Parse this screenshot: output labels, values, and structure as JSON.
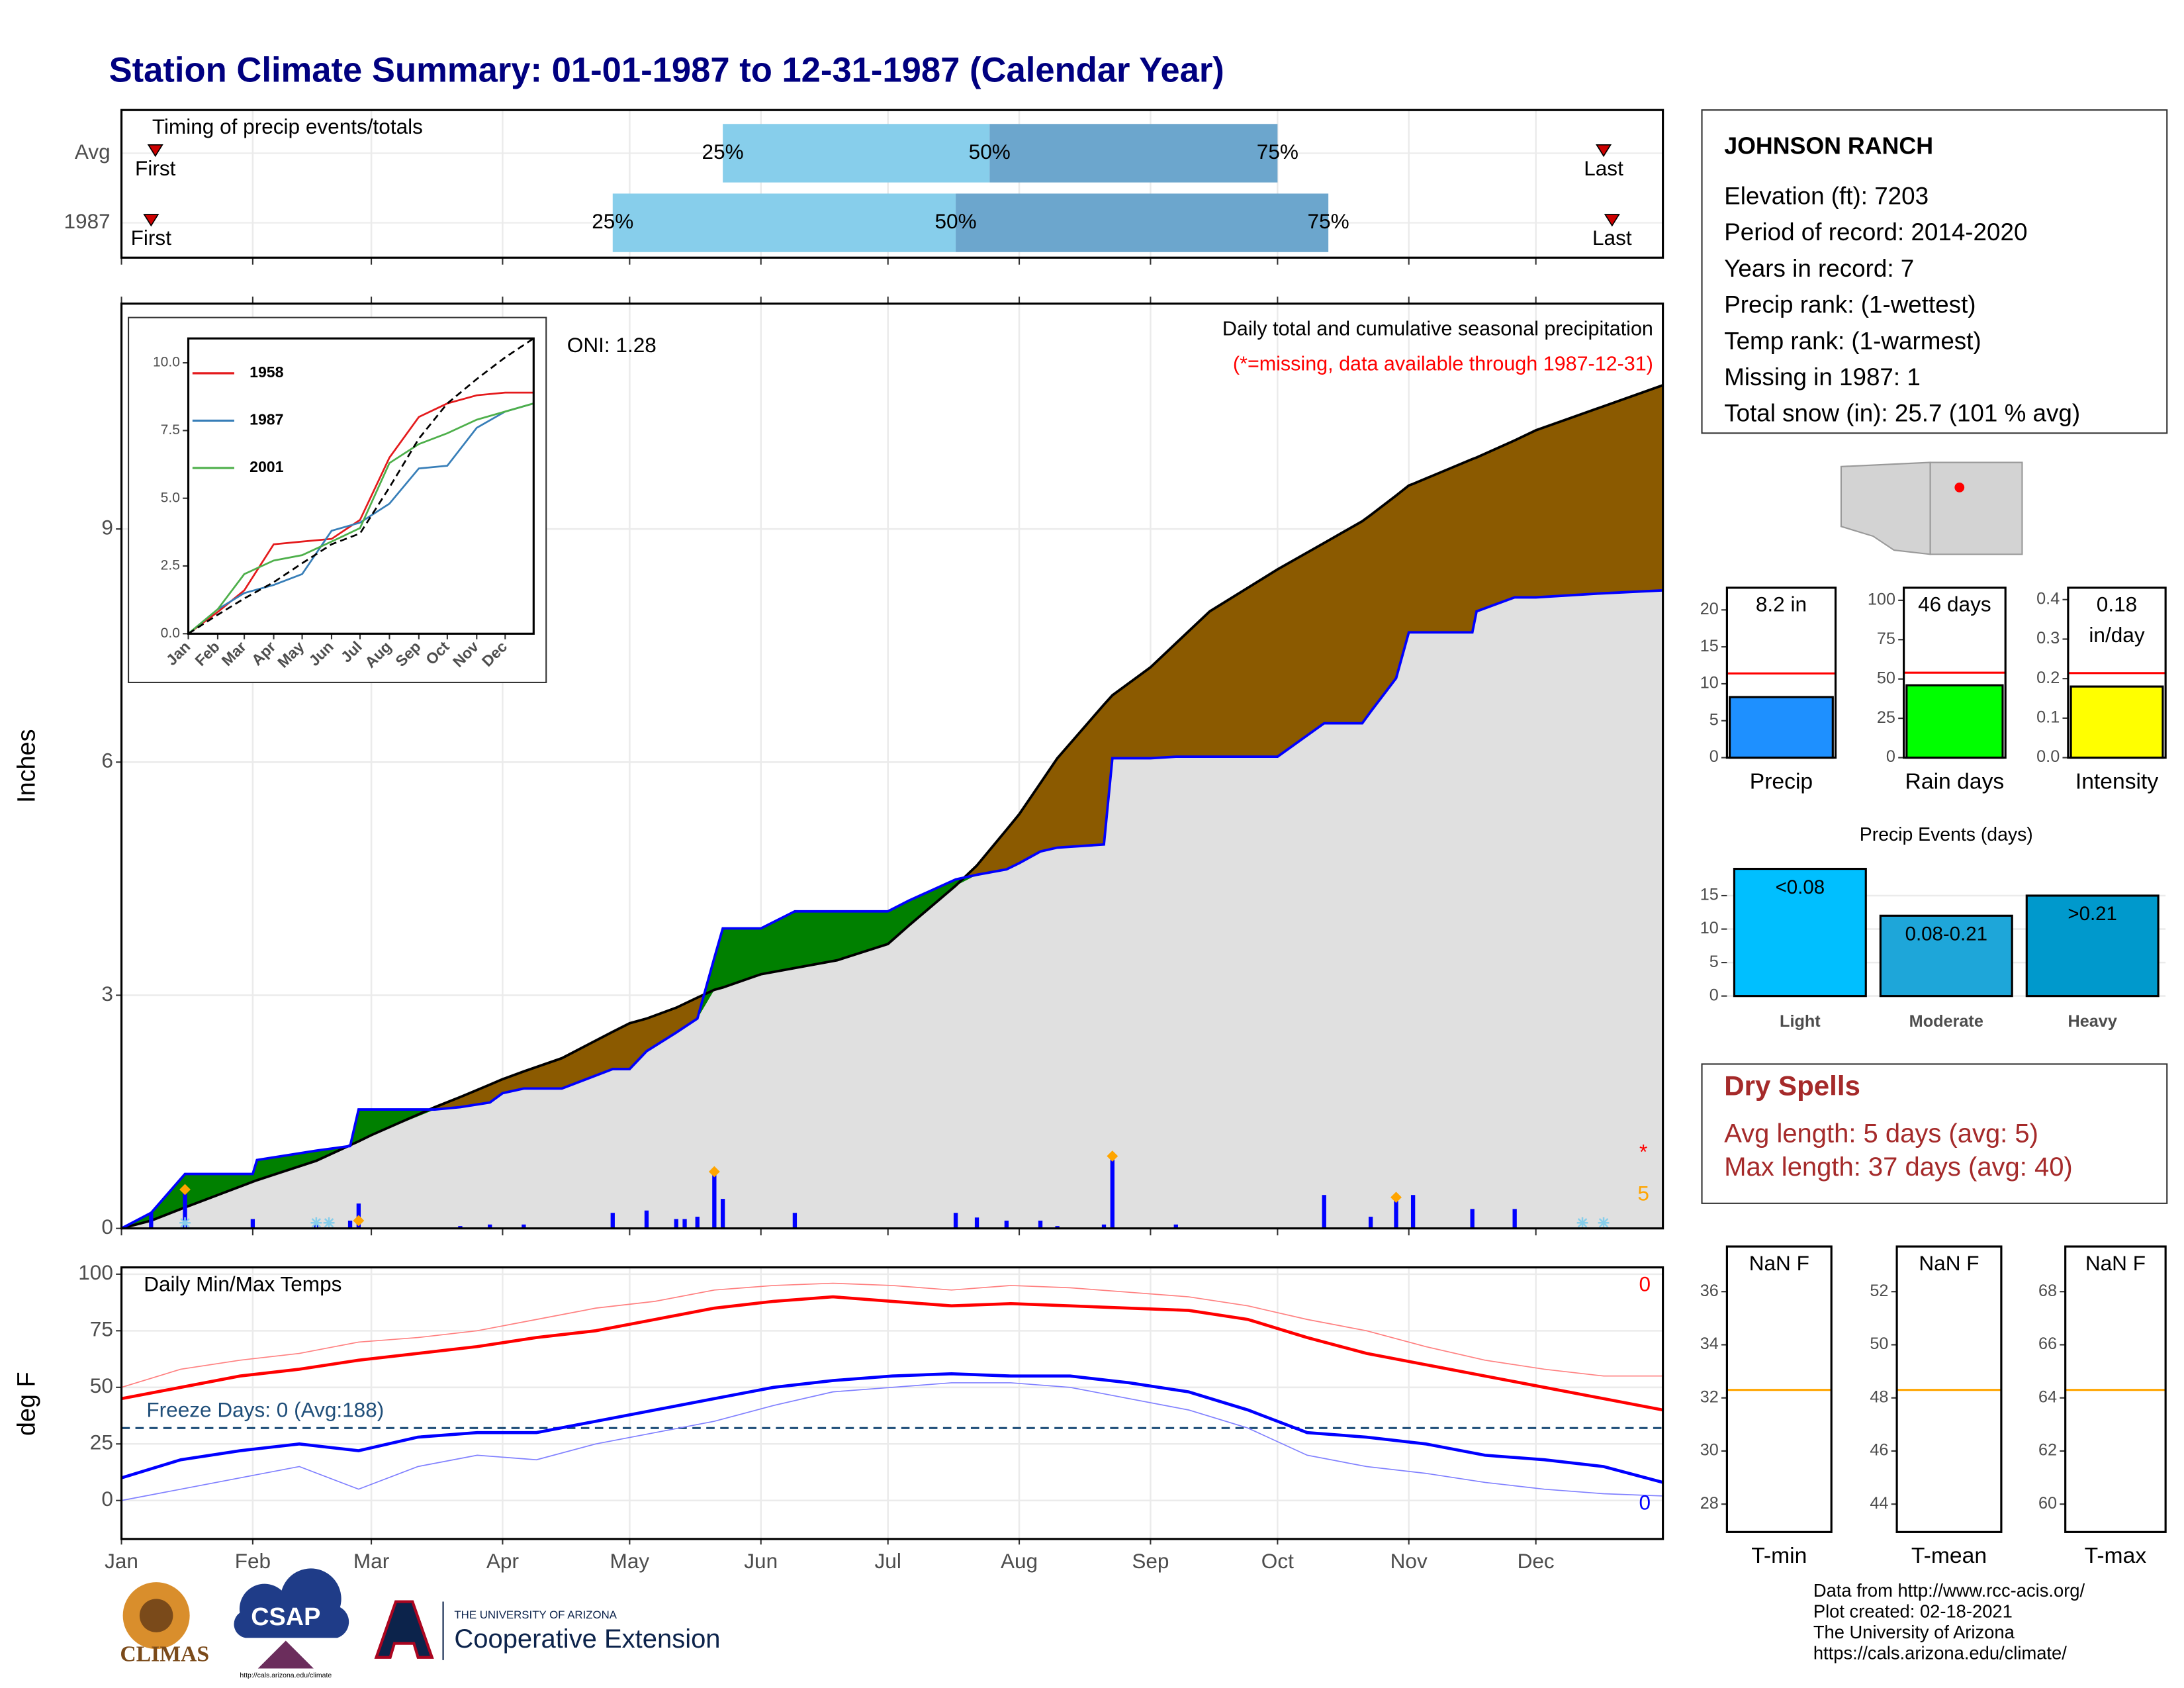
{
  "title": "Station Climate Summary: 01-01-1987 to 12-31-1987 (Calendar Year)",
  "chart_data": [
    {
      "type": "timing",
      "title": "Timing of precip events/totals",
      "xlim": [
        1,
        365
      ],
      "xticks": [
        1,
        32,
        60,
        91,
        121,
        152,
        182,
        213,
        244,
        274,
        305,
        335
      ],
      "marker_labels": [
        "First",
        "25%",
        "50%",
        "75%",
        "Last"
      ],
      "colors": [
        "#87ceeb",
        "#6ca6cd",
        "#cc0000"
      ],
      "rows": [
        {
          "name": "Avg",
          "values": [
            9,
            143,
            206,
            274,
            351
          ]
        },
        {
          "name": "1987",
          "values": [
            8,
            117,
            198,
            286,
            353
          ]
        }
      ]
    },
    {
      "type": "area",
      "title": "Daily total and cumulative seasonal precipitation",
      "subtitle": "(*=missing, data available through 1987-12-31)",
      "annotation": "ONI: 1.28",
      "ylabel": "Inches",
      "xlim": [
        1,
        365
      ],
      "xticks": [
        1,
        32,
        60,
        91,
        121,
        152,
        182,
        213,
        244,
        274,
        305,
        335
      ],
      "ylim": [
        0,
        11.9
      ],
      "yticks": [
        0,
        3,
        6,
        9
      ],
      "grid": true,
      "min_fill": "#e0e0e0",
      "x": [
        1,
        8,
        16,
        32,
        33,
        47,
        55,
        57,
        60,
        75,
        81,
        88,
        91,
        96,
        105,
        117,
        121,
        125,
        132,
        137,
        141,
        143,
        152,
        160,
        170,
        182,
        187,
        198,
        203,
        210,
        213,
        218,
        222,
        233,
        235,
        244,
        250,
        258,
        274,
        285,
        294,
        296,
        302,
        305,
        306,
        320,
        321,
        330,
        335,
        350,
        365
      ],
      "series": [
        {
          "color": "#000000",
          "fill": "#8b5a00",
          "values": [
            0,
            0.1,
            0.27,
            0.6,
            0.62,
            0.87,
            1.07,
            1.12,
            1.2,
            1.56,
            1.69,
            1.85,
            1.92,
            2.02,
            2.19,
            2.53,
            2.64,
            2.7,
            2.84,
            2.97,
            3.07,
            3.1,
            3.27,
            3.35,
            3.45,
            3.66,
            3.9,
            4.41,
            4.67,
            5.13,
            5.33,
            5.73,
            6.05,
            6.74,
            6.86,
            7.22,
            7.53,
            7.94,
            8.48,
            8.82,
            9.1,
            9.18,
            9.43,
            9.56,
            9.58,
            9.9,
            9.92,
            10.14,
            10.27,
            10.56,
            10.85
          ]
        },
        {
          "color": "#0000ff",
          "fill": "#008000",
          "values": [
            0,
            0.2,
            0.7,
            0.7,
            0.88,
            1.0,
            1.06,
            1.53,
            1.53,
            1.53,
            1.56,
            1.62,
            1.74,
            1.8,
            1.8,
            2.05,
            2.05,
            2.28,
            2.52,
            2.7,
            3.48,
            3.86,
            3.86,
            4.08,
            4.08,
            4.08,
            4.22,
            4.49,
            4.55,
            4.62,
            4.7,
            4.85,
            4.9,
            4.94,
            6.05,
            6.05,
            6.07,
            6.07,
            6.07,
            6.5,
            6.5,
            6.65,
            7.08,
            7.67,
            7.67,
            7.67,
            7.94,
            8.12,
            8.12,
            8.17,
            8.21
          ]
        }
      ],
      "daily": {
        "color": "#0000ff",
        "x": [
          8,
          16,
          32,
          47,
          55,
          57,
          81,
          88,
          96,
          117,
          125,
          132,
          134,
          137,
          141,
          143,
          160,
          198,
          203,
          210,
          218,
          222,
          233,
          235,
          250,
          285,
          296,
          302,
          306,
          320,
          330
        ],
        "values": [
          0.2,
          0.5,
          0.12,
          0.05,
          0.1,
          0.32,
          0.03,
          0.05,
          0.05,
          0.2,
          0.23,
          0.12,
          0.12,
          0.15,
          0.73,
          0.38,
          0.2,
          0.2,
          0.14,
          0.1,
          0.1,
          0.03,
          0.05,
          0.93,
          0.05,
          0.43,
          0.15,
          0.4,
          0.43,
          0.25,
          0.25
        ]
      },
      "markers": {
        "color": "#ffa500",
        "x": [
          16,
          57,
          141,
          235,
          302
        ],
        "values": [
          0.5,
          0.1,
          0.73,
          0.93,
          0.4
        ]
      },
      "snow_days": {
        "color": "#87ceeb",
        "x": [
          16,
          47,
          50,
          346,
          351
        ]
      },
      "notes": [
        {
          "text": "*",
          "color": "#ff0000"
        },
        {
          "text": "5",
          "color": "#ffa500"
        }
      ]
    },
    {
      "type": "line",
      "legend": "top-left",
      "xlim": [
        1,
        365
      ],
      "ylim": [
        0,
        10.9
      ],
      "yticks": [
        {
          "value": 0,
          "label": "0.0"
        },
        2.5,
        {
          "value": 5,
          "label": "5.0"
        },
        7.5,
        {
          "value": 10,
          "label": "10.0"
        }
      ],
      "xticks": [
        {
          "value": 1,
          "label": "Jan"
        },
        {
          "value": 32,
          "label": "Feb"
        },
        {
          "value": 60,
          "label": "Mar"
        },
        {
          "value": 91,
          "label": "Apr"
        },
        {
          "value": 121,
          "label": "May"
        },
        {
          "value": 152,
          "label": "Jun"
        },
        {
          "value": 182,
          "label": "Jul"
        },
        {
          "value": 213,
          "label": "Aug"
        },
        {
          "value": 244,
          "label": "Sep"
        },
        {
          "value": 274,
          "label": "Oct"
        },
        {
          "value": 305,
          "label": "Nov"
        },
        {
          "value": 335,
          "label": "Dec"
        }
      ],
      "x": [
        1,
        32,
        60,
        91,
        121,
        152,
        182,
        213,
        244,
        274,
        305,
        335,
        365
      ],
      "series": [
        {
          "name": "1958",
          "color": "#e41a1c",
          "values": [
            0,
            0.8,
            1.6,
            3.3,
            3.4,
            3.5,
            4.2,
            6.5,
            8.0,
            8.5,
            8.8,
            8.9,
            8.9
          ]
        },
        {
          "name": "1987",
          "color": "#377eb8",
          "values": [
            0,
            0.9,
            1.5,
            1.8,
            2.2,
            3.8,
            4.1,
            4.8,
            6.1,
            6.2,
            7.6,
            8.2,
            8.5
          ]
        },
        {
          "name": "2001",
          "color": "#4daf4a",
          "values": [
            0,
            0.9,
            2.2,
            2.7,
            2.9,
            3.4,
            3.9,
            6.3,
            7.0,
            7.4,
            7.9,
            8.2,
            8.5
          ]
        },
        {
          "color": "#000000",
          "dash": true,
          "values": [
            0,
            0.7,
            1.3,
            1.9,
            2.6,
            3.3,
            3.7,
            5.4,
            7.2,
            8.5,
            9.4,
            10.2,
            10.9
          ]
        }
      ]
    },
    {
      "type": "line",
      "title": "Daily Min/Max Temps",
      "ylabel": "deg F",
      "freeze_label": "Freeze Days: 0 (Avg:188)",
      "freeze": 32,
      "freeze_color": "#1f4e79",
      "notes": [
        {
          "text": "0",
          "color": "#ff0000"
        },
        {
          "text": "0",
          "color": "#0000ff"
        }
      ],
      "xlim": [
        1,
        365
      ],
      "ylim": [
        -17,
        103
      ],
      "yticks": [
        0,
        25,
        50,
        75,
        100
      ],
      "grid": true,
      "xticks": [
        {
          "value": 1,
          "label": "Jan"
        },
        {
          "value": 32,
          "label": "Feb"
        },
        {
          "value": 60,
          "label": "Mar"
        },
        {
          "value": 91,
          "label": "Apr"
        },
        {
          "value": 121,
          "label": "May"
        },
        {
          "value": 152,
          "label": "Jun"
        },
        {
          "value": 182,
          "label": "Jul"
        },
        {
          "value": 213,
          "label": "Aug"
        },
        {
          "value": 244,
          "label": "Sep"
        },
        {
          "value": 274,
          "label": "Oct"
        },
        {
          "value": 305,
          "label": "Nov"
        },
        {
          "value": 335,
          "label": "Dec"
        }
      ],
      "x": [
        1,
        15,
        29,
        43,
        57,
        71,
        85,
        99,
        113,
        127,
        141,
        155,
        169,
        183,
        197,
        211,
        225,
        239,
        253,
        267,
        281,
        295,
        309,
        323,
        337,
        351,
        365
      ],
      "series": [
        {
          "color": "#ff8080",
          "thin": true,
          "values": [
            50,
            58,
            62,
            65,
            70,
            72,
            75,
            80,
            85,
            88,
            93,
            95,
            96,
            95,
            93,
            95,
            94,
            92,
            90,
            86,
            80,
            75,
            68,
            62,
            58,
            55,
            55
          ]
        },
        {
          "color": "#8080ff",
          "thin": true,
          "values": [
            0,
            5,
            10,
            15,
            5,
            15,
            20,
            18,
            25,
            30,
            35,
            42,
            48,
            50,
            52,
            52,
            50,
            45,
            40,
            32,
            20,
            15,
            12,
            8,
            5,
            3,
            2
          ]
        },
        {
          "color": "#ff0000",
          "values": [
            45,
            50,
            55,
            58,
            62,
            65,
            68,
            72,
            75,
            80,
            85,
            88,
            90,
            88,
            86,
            87,
            86,
            85,
            84,
            80,
            72,
            65,
            60,
            55,
            50,
            45,
            40
          ]
        },
        {
          "color": "#0000ff",
          "values": [
            10,
            18,
            22,
            25,
            22,
            28,
            30,
            30,
            35,
            40,
            45,
            50,
            53,
            55,
            56,
            55,
            55,
            52,
            48,
            40,
            30,
            28,
            25,
            20,
            18,
            15,
            8
          ]
        }
      ]
    },
    {
      "type": "gauge",
      "categories": [
        "Precip"
      ],
      "values": [
        8.2
      ],
      "value_labels": [
        "8.2 in"
      ],
      "avg": 11.4,
      "avg_color": "#ff0000",
      "color": "#1e90ff",
      "ylim": [
        0,
        23
      ],
      "yticks": [
        0,
        5,
        10,
        15,
        20
      ]
    },
    {
      "type": "gauge",
      "categories": [
        "Rain days"
      ],
      "values": [
        46
      ],
      "value_labels": [
        "46 days"
      ],
      "avg": 54,
      "avg_color": "#ff0000",
      "color": "#00ff00",
      "ylim": [
        0,
        108
      ],
      "yticks": [
        0,
        25,
        50,
        75,
        100
      ]
    },
    {
      "type": "gauge",
      "categories": [
        "Intensity"
      ],
      "values": [
        0.18
      ],
      "value_labels": [
        "0.18 in/day"
      ],
      "avg": 0.214,
      "avg_color": "#ff0000",
      "color": "#ffff00",
      "ylim": [
        0,
        0.43
      ],
      "yticks": [
        {
          "value": 0,
          "label": "0.0"
        },
        0.1,
        0.2,
        0.3,
        0.4
      ]
    },
    {
      "type": "bar",
      "title": "Precip Events (days)",
      "categories": [
        "Light",
        "Moderate",
        "Heavy"
      ],
      "values": [
        19,
        12,
        15
      ],
      "bar_labels": [
        "<0.08",
        "0.08-0.21",
        ">0.21"
      ],
      "colors": [
        "#00bfff",
        "#1ea6d9",
        "#0099cc"
      ],
      "ylim": [
        -0.8,
        19.8
      ],
      "yticks": [
        0,
        5,
        10,
        15
      ],
      "grid": true
    },
    {
      "type": "gauge",
      "categories": [
        "T-min"
      ],
      "values": [
        null
      ],
      "value_labels": [
        "NaN F"
      ],
      "avg": 32.3,
      "avg_color": "#ffa500",
      "color": "#888888",
      "ylim": [
        26.95,
        37.7
      ],
      "yticks": [
        28,
        30,
        32,
        34,
        36
      ]
    },
    {
      "type": "gauge",
      "categories": [
        "T-mean"
      ],
      "values": [
        null
      ],
      "value_labels": [
        "NaN F"
      ],
      "avg": 48.3,
      "avg_color": "#ffa500",
      "color": "#888888",
      "ylim": [
        42.95,
        53.7
      ],
      "yticks": [
        44,
        46,
        48,
        50,
        52
      ]
    },
    {
      "type": "gauge",
      "categories": [
        "T-max"
      ],
      "values": [
        null
      ],
      "value_labels": [
        "NaN F"
      ],
      "avg": 64.3,
      "avg_color": "#ffa500",
      "color": "#888888",
      "ylim": [
        58.95,
        69.7
      ],
      "yticks": [
        60,
        62,
        64,
        66,
        68
      ]
    }
  ],
  "station": {
    "name": "JOHNSON RANCH",
    "lines": [
      "Elevation (ft): 7203",
      "Period of record: 2014-2020",
      "Years in record: 7",
      "Precip rank:  (1-wettest)",
      "Temp rank:  (1-warmest)",
      "Missing in 1987: 1",
      "Total snow (in): 25.7 (101 % avg)"
    ]
  },
  "dry_spells": {
    "title": "Dry Spells",
    "lines": [
      "Avg length: 5 days (avg: 5)",
      "Max length: 37 days (avg: 40)"
    ]
  },
  "logos": [
    "CLIMAS",
    "CSAP",
    "http://cals.arizona.edu/climate",
    "THE UNIVERSITY OF ARIZONA",
    "Cooperative Extension"
  ],
  "credits": [
    "Data from http://www.rcc-acis.org/",
    "Plot created: 02-18-2021",
    "The University of Arizona",
    "https://cals.arizona.edu/climate/"
  ]
}
